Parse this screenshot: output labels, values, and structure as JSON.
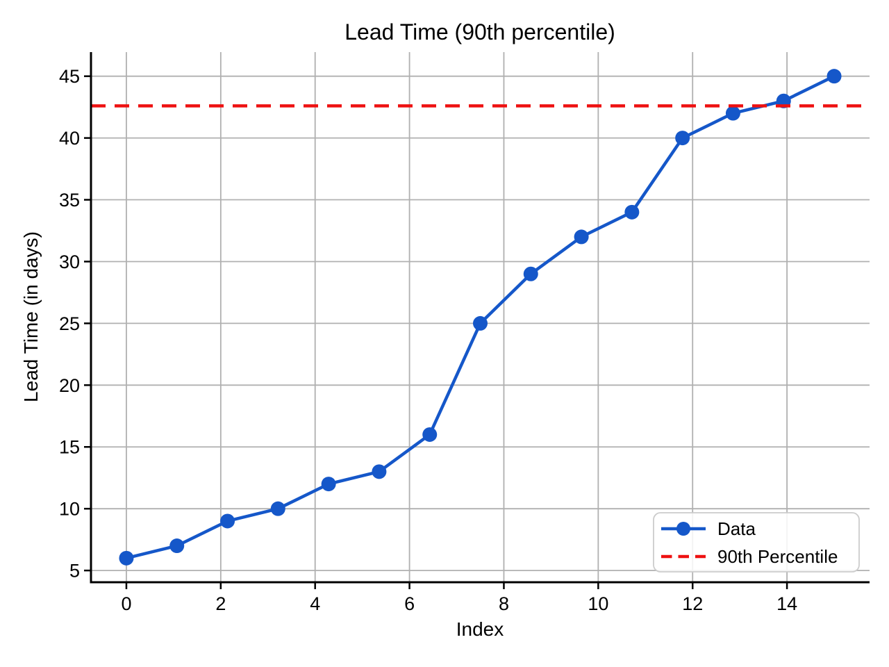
{
  "chart_data": {
    "type": "line",
    "title": "Lead Time (90th percentile)",
    "xlabel": "Index",
    "ylabel": "Lead Time (in days)",
    "xlim": [
      -0.75,
      15.75
    ],
    "ylim": [
      4.05,
      46.95
    ],
    "xticks": [
      0,
      2,
      4,
      6,
      8,
      10,
      12,
      14
    ],
    "yticks": [
      5,
      10,
      15,
      20,
      25,
      30,
      35,
      40,
      45
    ],
    "grid": true,
    "legend_position": "lower right",
    "series": [
      {
        "name": "Data",
        "kind": "line-markers",
        "color": "#1557c9",
        "x": [
          0,
          1.071,
          2.143,
          3.214,
          4.286,
          5.357,
          6.429,
          7.5,
          8.571,
          9.643,
          10.714,
          11.786,
          12.857,
          13.929,
          15
        ],
        "y": [
          6,
          7,
          9,
          10,
          12,
          13,
          16,
          25,
          29,
          32,
          34,
          40,
          42,
          43,
          45
        ]
      },
      {
        "name": "90th Percentile",
        "kind": "dashed-hline",
        "color": "#ee1111",
        "value": 42.6
      }
    ],
    "colors": {
      "grid": "#b0b0b0",
      "spine": "#000000",
      "text": "#000000",
      "background": "#ffffff",
      "legend_border": "#cccccc"
    }
  }
}
